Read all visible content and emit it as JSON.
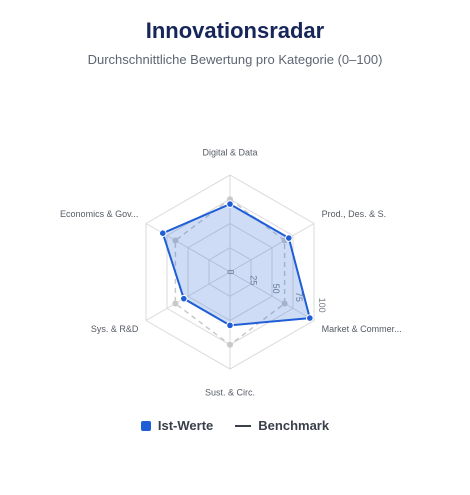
{
  "title": "Innovationsradar",
  "subtitle": "Durchschnittliche Bewertung pro Kategorie (0–100)",
  "colors": {
    "ist_stroke": "#1f5ed6",
    "ist_fill": "#1f5ed6",
    "benchmark": "#c9c9c9",
    "grid": "#d9d9d9",
    "title": "#16255a"
  },
  "chart_data": {
    "type": "radar",
    "categories": [
      "Digital & Data",
      "Prod., Des. & S.",
      "Market & Commer...",
      "Sust. & Circ.",
      "Sys. & R&D",
      "Economics & Gov..."
    ],
    "rlim": [
      0,
      100
    ],
    "ticks": [
      0,
      25,
      50,
      75,
      100
    ],
    "tick_labels": [
      "0",
      "25",
      "50",
      "75",
      "100"
    ],
    "series": [
      {
        "name": "Ist-Werte",
        "values": [
          70,
          70,
          95,
          55,
          55,
          80
        ]
      },
      {
        "name": "Benchmark",
        "values": [
          75,
          65,
          65,
          75,
          65,
          65
        ]
      }
    ],
    "legend": {
      "position": "bottom",
      "items": [
        "Ist-Werte",
        "Benchmark"
      ]
    }
  }
}
